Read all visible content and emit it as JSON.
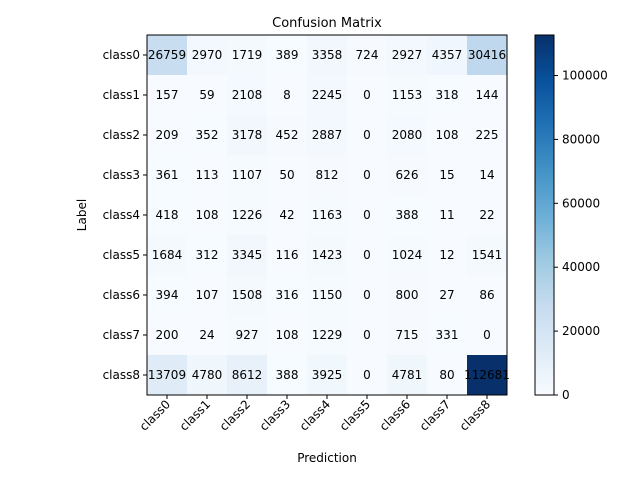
{
  "chart_data": {
    "type": "heatmap",
    "title": "Confusion Matrix",
    "xlabel": "Prediction",
    "ylabel": "Label",
    "x_categories": [
      "class0",
      "class1",
      "class2",
      "class3",
      "class4",
      "class5",
      "class6",
      "class7",
      "class8"
    ],
    "y_categories": [
      "class0",
      "class1",
      "class2",
      "class3",
      "class4",
      "class5",
      "class6",
      "class7",
      "class8"
    ],
    "values": [
      [
        26759,
        2970,
        1719,
        389,
        3358,
        724,
        2927,
        4357,
        30416
      ],
      [
        157,
        59,
        2108,
        8,
        2245,
        0,
        1153,
        318,
        144
      ],
      [
        209,
        352,
        3178,
        452,
        2887,
        0,
        2080,
        108,
        225
      ],
      [
        361,
        113,
        1107,
        50,
        812,
        0,
        626,
        15,
        14
      ],
      [
        418,
        108,
        1226,
        42,
        1163,
        0,
        388,
        11,
        22
      ],
      [
        1684,
        312,
        3345,
        116,
        1423,
        0,
        1024,
        12,
        1541
      ],
      [
        394,
        107,
        1508,
        316,
        1150,
        0,
        800,
        27,
        86
      ],
      [
        200,
        24,
        927,
        108,
        1229,
        0,
        715,
        331,
        0
      ],
      [
        13709,
        4780,
        8612,
        388,
        3925,
        0,
        4781,
        80,
        112681
      ]
    ],
    "colormap": "Blues",
    "colorbar": {
      "range": [
        0,
        112681
      ],
      "ticks": [
        0,
        20000,
        40000,
        60000,
        80000,
        100000
      ]
    },
    "colors": {
      "low": "#f7fbff",
      "high": "#08306b"
    }
  }
}
